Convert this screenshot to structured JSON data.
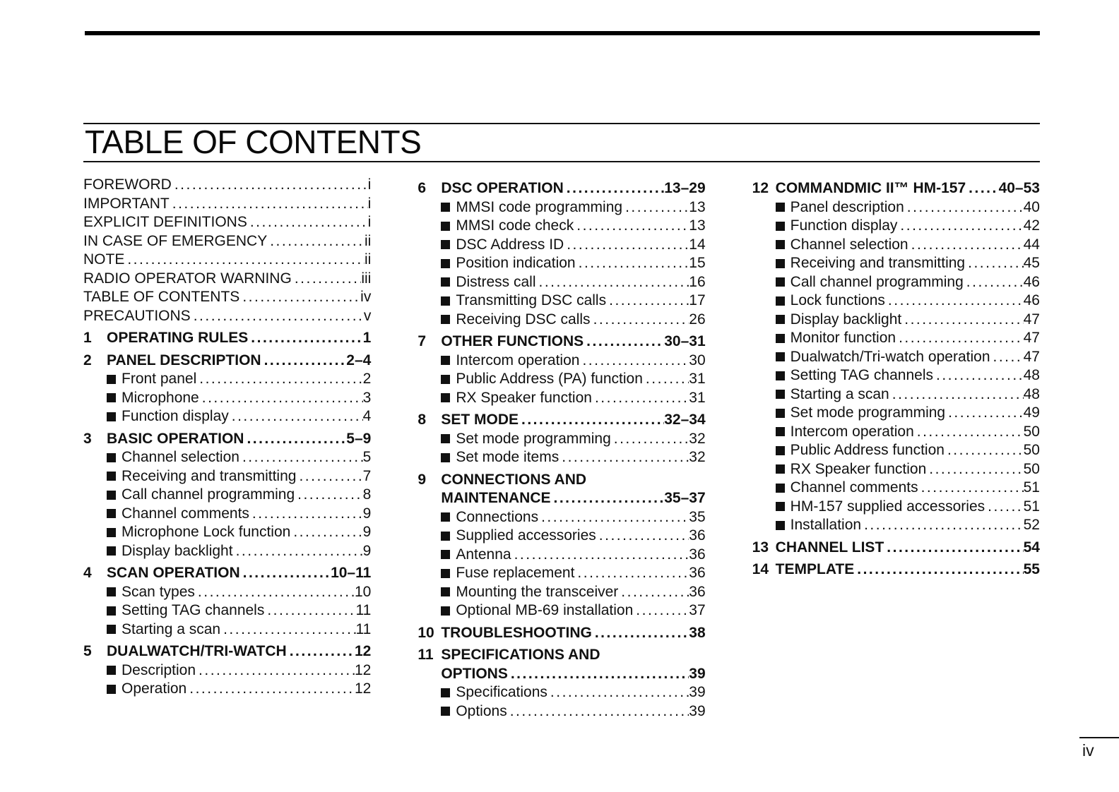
{
  "page": {
    "title": "TABLE OF CONTENTS",
    "footer_page_number": "iv"
  },
  "columns": [
    {
      "items": [
        {
          "type": "front",
          "label": "FOREWORD",
          "page": "i"
        },
        {
          "type": "front",
          "label": "IMPORTANT",
          "page": "i"
        },
        {
          "type": "front",
          "label": "EXPLICIT DEFINITIONS",
          "page": "i"
        },
        {
          "type": "front",
          "label": "IN CASE OF EMERGENCY",
          "page": "ii"
        },
        {
          "type": "front",
          "label": "NOTE",
          "page": "ii"
        },
        {
          "type": "front",
          "label": "RADIO OPERATOR WARNING",
          "page": "iii"
        },
        {
          "type": "front",
          "label": "TABLE OF CONTENTS",
          "page": "iv"
        },
        {
          "type": "front",
          "label": "PRECAUTIONS",
          "page": "v"
        },
        {
          "type": "section",
          "num": "1",
          "label": "OPERATING RULES",
          "page": "1"
        },
        {
          "type": "section",
          "num": "2",
          "label": "PANEL DESCRIPTION",
          "page": "2–4"
        },
        {
          "type": "sub",
          "label": "Front panel",
          "page": "2"
        },
        {
          "type": "sub",
          "label": "Microphone",
          "page": "3"
        },
        {
          "type": "sub",
          "label": "Function display",
          "page": "4"
        },
        {
          "type": "section",
          "num": "3",
          "label": "BASIC OPERATION",
          "page": "5–9"
        },
        {
          "type": "sub",
          "label": "Channel selection",
          "page": "5"
        },
        {
          "type": "sub",
          "label": "Receiving and transmitting",
          "page": "7"
        },
        {
          "type": "sub",
          "label": "Call channel programming",
          "page": "8"
        },
        {
          "type": "sub",
          "label": "Channel comments",
          "page": "9"
        },
        {
          "type": "sub",
          "label": "Microphone Lock function",
          "page": "9"
        },
        {
          "type": "sub",
          "label": "Display backlight",
          "page": "9"
        },
        {
          "type": "section",
          "num": "4",
          "label": "SCAN OPERATION",
          "page": "10–11"
        },
        {
          "type": "sub",
          "label": "Scan types",
          "page": "10"
        },
        {
          "type": "sub",
          "label": "Setting TAG channels",
          "page": "11"
        },
        {
          "type": "sub",
          "label": "Starting a scan",
          "page": "11"
        },
        {
          "type": "section",
          "num": "5",
          "label": "DUALWATCH/TRI-WATCH",
          "page": "12"
        },
        {
          "type": "sub",
          "label": "Description",
          "page": "12"
        },
        {
          "type": "sub",
          "label": "Operation",
          "page": "12"
        }
      ]
    },
    {
      "items": [
        {
          "type": "section",
          "num": "6",
          "label": "DSC OPERATION",
          "page": "13–29"
        },
        {
          "type": "sub",
          "label": "MMSI code programming",
          "page": "13"
        },
        {
          "type": "sub",
          "label": "MMSI code check",
          "page": "13"
        },
        {
          "type": "sub",
          "label": "DSC Address ID",
          "page": "14"
        },
        {
          "type": "sub",
          "label": "Position indication",
          "page": "15"
        },
        {
          "type": "sub",
          "label": "Distress call",
          "page": "16"
        },
        {
          "type": "sub",
          "label": "Transmitting DSC calls",
          "page": "17"
        },
        {
          "type": "sub",
          "label": "Receiving DSC calls",
          "page": "26"
        },
        {
          "type": "section",
          "num": "7",
          "label": "OTHER FUNCTIONS",
          "page": "30–31"
        },
        {
          "type": "sub",
          "label": "Intercom operation",
          "page": "30"
        },
        {
          "type": "sub",
          "label": "Public Address (PA) function",
          "page": "31"
        },
        {
          "type": "sub",
          "label": "RX Speaker function",
          "page": "31"
        },
        {
          "type": "section",
          "num": "8",
          "label": "SET MODE",
          "page": "32–34"
        },
        {
          "type": "sub",
          "label": "Set mode programming",
          "page": "32"
        },
        {
          "type": "sub",
          "label": "Set mode items",
          "page": "32"
        },
        {
          "type": "section",
          "num": "9",
          "label": "CONNECTIONS AND",
          "label2": "MAINTENANCE",
          "page": "35–37"
        },
        {
          "type": "sub",
          "label": "Connections",
          "page": "35"
        },
        {
          "type": "sub",
          "label": "Supplied accessories",
          "page": "36"
        },
        {
          "type": "sub",
          "label": "Antenna",
          "page": "36"
        },
        {
          "type": "sub",
          "label": "Fuse replacement",
          "page": "36"
        },
        {
          "type": "sub",
          "label": "Mounting the transceiver",
          "page": "36"
        },
        {
          "type": "sub",
          "label": "Optional MB-69 installation",
          "page": "37"
        },
        {
          "type": "section",
          "num": "10",
          "label": "TROUBLESHOOTING",
          "page": "38"
        },
        {
          "type": "section",
          "num": "11",
          "label": "SPECIFICATIONS AND",
          "label2": "OPTIONS",
          "page": "39"
        },
        {
          "type": "sub",
          "label": "Specifications",
          "page": "39"
        },
        {
          "type": "sub",
          "label": "Options",
          "page": "39"
        }
      ]
    },
    {
      "items": [
        {
          "type": "section",
          "num": "12",
          "label": "COMMANDMIC II™ HM-157",
          "page": "40–53"
        },
        {
          "type": "sub",
          "label": "Panel description",
          "page": "40"
        },
        {
          "type": "sub",
          "label": "Function display",
          "page": "42"
        },
        {
          "type": "sub",
          "label": "Channel selection",
          "page": "44"
        },
        {
          "type": "sub",
          "label": "Receiving and transmitting",
          "page": "45"
        },
        {
          "type": "sub",
          "label": "Call channel programming",
          "page": "46"
        },
        {
          "type": "sub",
          "label": "Lock functions",
          "page": "46"
        },
        {
          "type": "sub",
          "label": "Display backlight",
          "page": "47"
        },
        {
          "type": "sub",
          "label": "Monitor function",
          "page": "47"
        },
        {
          "type": "sub",
          "label": "Dualwatch/Tri-watch operation",
          "page": "47"
        },
        {
          "type": "sub",
          "label": "Setting TAG channels",
          "page": "48"
        },
        {
          "type": "sub",
          "label": "Starting a scan",
          "page": "48"
        },
        {
          "type": "sub",
          "label": "Set mode programming",
          "page": "49"
        },
        {
          "type": "sub",
          "label": "Intercom operation",
          "page": "50"
        },
        {
          "type": "sub",
          "label": "Public Address function",
          "page": "50"
        },
        {
          "type": "sub",
          "label": "RX Speaker function",
          "page": "50"
        },
        {
          "type": "sub",
          "label": "Channel comments",
          "page": "51"
        },
        {
          "type": "sub",
          "label": "HM-157 supplied accessories",
          "page": "51"
        },
        {
          "type": "sub",
          "label": "Installation",
          "page": "52"
        },
        {
          "type": "section",
          "num": "13",
          "label": "CHANNEL LIST",
          "page": "54"
        },
        {
          "type": "section",
          "num": "14",
          "label": "TEMPLATE",
          "page": "55"
        }
      ]
    }
  ]
}
